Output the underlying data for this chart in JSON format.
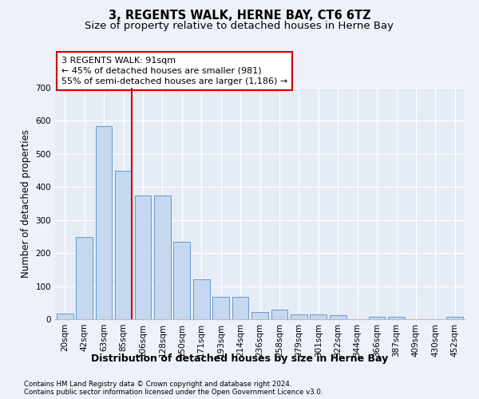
{
  "title": "3, REGENTS WALK, HERNE BAY, CT6 6TZ",
  "subtitle": "Size of property relative to detached houses in Herne Bay",
  "xlabel": "Distribution of detached houses by size in Herne Bay",
  "ylabel": "Number of detached properties",
  "footnote1": "Contains HM Land Registry data © Crown copyright and database right 2024.",
  "footnote2": "Contains public sector information licensed under the Open Government Licence v3.0.",
  "categories": [
    "20sqm",
    "42sqm",
    "63sqm",
    "85sqm",
    "106sqm",
    "128sqm",
    "150sqm",
    "171sqm",
    "193sqm",
    "214sqm",
    "236sqm",
    "258sqm",
    "279sqm",
    "301sqm",
    "322sqm",
    "344sqm",
    "366sqm",
    "387sqm",
    "409sqm",
    "430sqm",
    "452sqm"
  ],
  "values": [
    18,
    248,
    585,
    450,
    375,
    375,
    235,
    120,
    68,
    68,
    22,
    30,
    15,
    15,
    12,
    0,
    8,
    8,
    0,
    0,
    8
  ],
  "bar_color": "#c5d8f0",
  "bar_edge_color": "#6699cc",
  "vline_index": 3,
  "vline_color": "#cc0000",
  "annotation_text": "3 REGENTS WALK: 91sqm\n← 45% of detached houses are smaller (981)\n55% of semi-detached houses are larger (1,186) →",
  "annotation_box_color": "#ffffff",
  "annotation_box_edge": "#cc0000",
  "ylim": [
    0,
    700
  ],
  "yticks": [
    0,
    100,
    200,
    300,
    400,
    500,
    600,
    700
  ],
  "bg_color": "#eef1f9",
  "plot_bg_color": "#e6ecf6",
  "title_fontsize": 10.5,
  "subtitle_fontsize": 9.5,
  "tick_fontsize": 7.5,
  "xlabel_fontsize": 9,
  "ylabel_fontsize": 8.5,
  "annotation_fontsize": 8
}
